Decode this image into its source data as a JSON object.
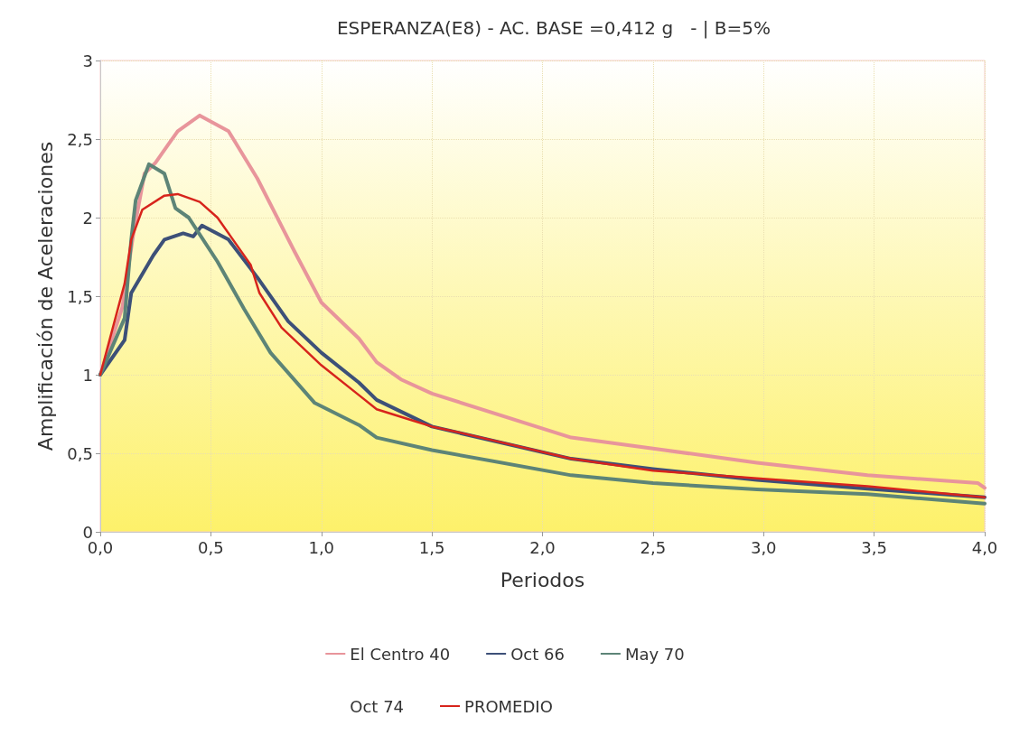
{
  "chart_data": {
    "type": "line",
    "title": "ESPERANZA(E8) - AC. BASE =0,412 g   - | B=5%",
    "xlabel": "Periodos",
    "ylabel": "Amplificación de Aceleraciones",
    "xlim": [
      0,
      4
    ],
    "ylim": [
      0,
      3
    ],
    "xticks": [
      {
        "value": 0,
        "label": "0,0"
      },
      {
        "value": 0.5,
        "label": "0,5"
      },
      {
        "value": 1,
        "label": "1,0"
      },
      {
        "value": 1.5,
        "label": "1,5"
      },
      {
        "value": 2,
        "label": "2,0"
      },
      {
        "value": 2.5,
        "label": "2,5"
      },
      {
        "value": 3,
        "label": "3,0"
      },
      {
        "value": 3.5,
        "label": "3,5"
      },
      {
        "value": 4,
        "label": "4,0"
      }
    ],
    "yticks": [
      0,
      {
        "value": 0.5,
        "label": "0,5"
      },
      1,
      {
        "value": 1.5,
        "label": "1,5"
      },
      2,
      {
        "value": 2.5,
        "label": "2,5"
      },
      3
    ],
    "grid": true,
    "legend": "bottom",
    "marker": "none",
    "line_style": "solid",
    "series": [
      {
        "name": "El Centro 40",
        "color": "#e8959b",
        "x": [
          0,
          0.1,
          0.15,
          0.2,
          0.25,
          0.3,
          0.35,
          0.45,
          0.58,
          0.71,
          0.88,
          1.0,
          1.17,
          1.25,
          1.36,
          1.5,
          2.13,
          2.5,
          2.97,
          3.47,
          3.97,
          4.0
        ],
        "values": [
          1,
          1.43,
          1.9,
          2.28,
          2.35,
          2.45,
          2.55,
          2.65,
          2.55,
          2.25,
          1.78,
          1.46,
          1.23,
          1.08,
          0.97,
          0.88,
          0.6,
          0.53,
          0.44,
          0.36,
          0.31,
          0.28
        ]
      },
      {
        "name": "Oct 66",
        "color": "#3d5078",
        "x": [
          0,
          0.11,
          0.14,
          0.24,
          0.29,
          0.375,
          0.42,
          0.46,
          0.58,
          0.71,
          0.85,
          1.0,
          1.17,
          1.25,
          1.5,
          2.13,
          2.5,
          2.97,
          3.47,
          4.0
        ],
        "values": [
          1,
          1.22,
          1.52,
          1.76,
          1.86,
          1.9,
          1.88,
          1.95,
          1.86,
          1.62,
          1.34,
          1.14,
          0.95,
          0.84,
          0.67,
          0.465,
          0.4,
          0.33,
          0.275,
          0.22
        ]
      },
      {
        "name": "May 70",
        "color": "#5d8477",
        "x": [
          0,
          0.11,
          0.14,
          0.16,
          0.22,
          0.29,
          0.34,
          0.4,
          0.53,
          0.65,
          0.77,
          0.97,
          1.17,
          1.25,
          1.5,
          2.13,
          2.5,
          2.97,
          3.47,
          4.0
        ],
        "values": [
          1,
          1.36,
          1.86,
          2.11,
          2.34,
          2.28,
          2.06,
          2.0,
          1.72,
          1.42,
          1.14,
          0.82,
          0.68,
          0.6,
          0.52,
          0.36,
          0.31,
          0.27,
          0.24,
          0.18
        ]
      },
      {
        "name": "Oct 74"
      },
      {
        "name": "PROMEDIO",
        "color": "#d7241c",
        "x": [
          0,
          0.11,
          0.14,
          0.19,
          0.29,
          0.35,
          0.45,
          0.53,
          0.59,
          0.68,
          0.72,
          0.82,
          1.0,
          1.17,
          1.25,
          1.41,
          1.5,
          1.63,
          2.13,
          2.5,
          2.97,
          3.47,
          4.0
        ],
        "values": [
          1,
          1.58,
          1.86,
          2.05,
          2.14,
          2.15,
          2.1,
          2.0,
          1.88,
          1.7,
          1.52,
          1.3,
          1.06,
          0.87,
          0.78,
          0.71,
          0.67,
          0.63,
          0.465,
          0.39,
          0.34,
          0.29,
          0.22
        ]
      }
    ]
  }
}
